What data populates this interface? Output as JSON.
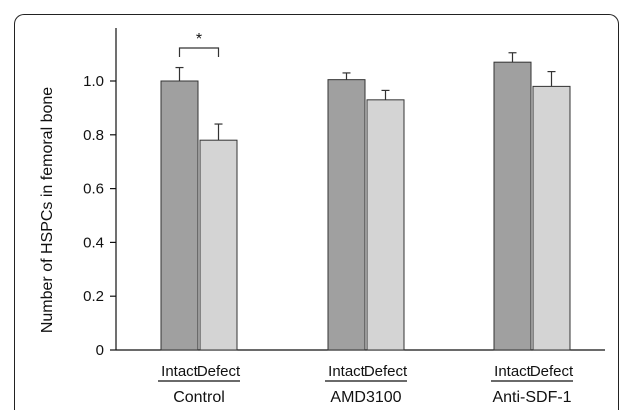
{
  "chart_data": {
    "type": "bar",
    "ylabel": "Number of HSPCs in femoral bone",
    "ylim": [
      0,
      1.2
    ],
    "yticks": [
      "0",
      "0.2",
      "0.4",
      "0.6",
      "0.8",
      "1.0"
    ],
    "groups": [
      {
        "label": "Control",
        "bars": [
          {
            "label": "Intact",
            "value": 1.0,
            "error": 0.05
          },
          {
            "label": "Defect",
            "value": 0.78,
            "error": 0.06
          }
        ],
        "annotation": "*"
      },
      {
        "label": "AMD3100",
        "bars": [
          {
            "label": "Intact",
            "value": 1.005,
            "error": 0.025
          },
          {
            "label": "Defect",
            "value": 0.93,
            "error": 0.035
          }
        ]
      },
      {
        "label": "Anti-SDF-1",
        "bars": [
          {
            "label": "Intact",
            "value": 1.07,
            "error": 0.035
          },
          {
            "label": "Defect",
            "value": 0.98,
            "error": 0.055
          }
        ]
      }
    ],
    "colors": {
      "Intact": "#a0a0a0",
      "Defect": "#d4d4d4"
    },
    "grid": false
  }
}
